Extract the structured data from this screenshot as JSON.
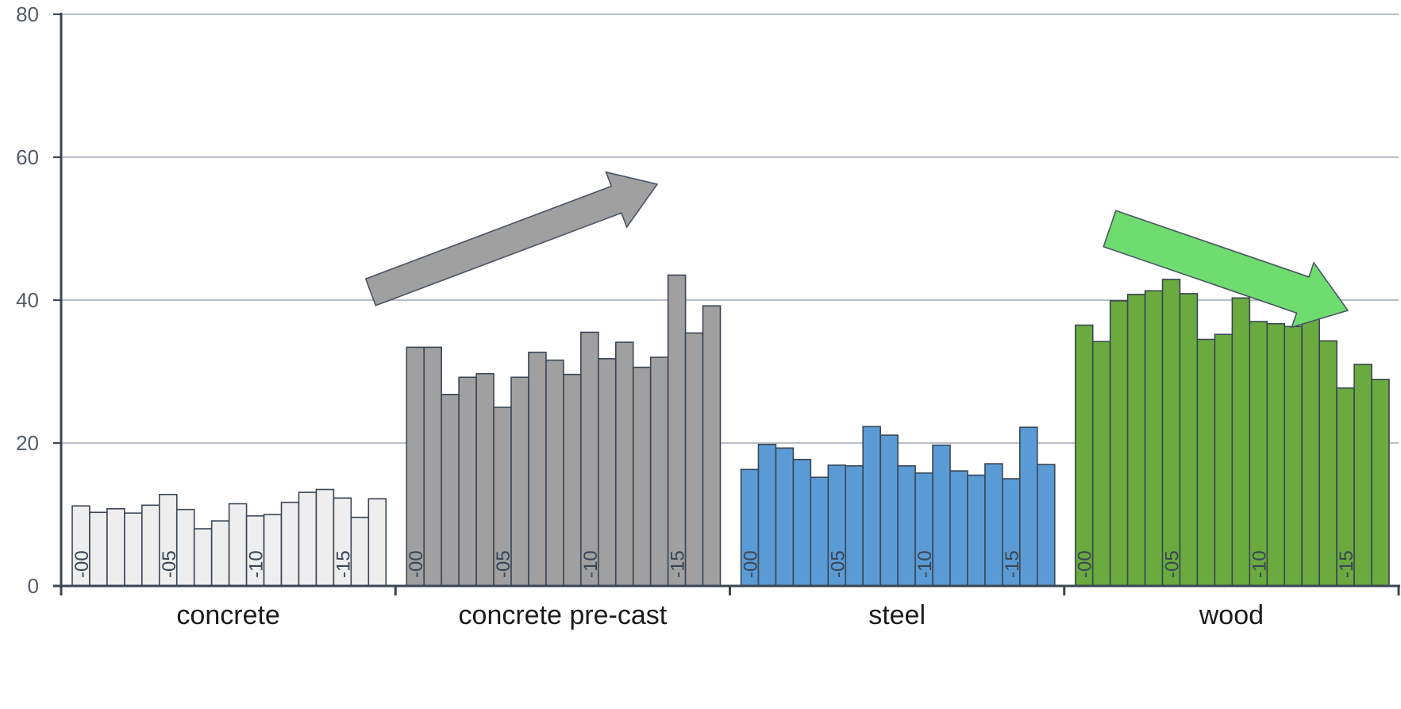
{
  "chart_data": {
    "type": "bar",
    "ylim": [
      0,
      80
    ],
    "yticks": [
      0,
      20,
      40,
      60,
      80
    ],
    "grid": true,
    "categories": [
      "concrete",
      "concrete pre-cast",
      "steel",
      "wood"
    ],
    "inbar_labels": [
      "-00",
      "-05",
      "-10",
      "-15"
    ],
    "inbar_positions": [
      0,
      5,
      10,
      15
    ],
    "groups": [
      {
        "name": "concrete",
        "color": "#eeeeee",
        "values": [
          11.2,
          10.3,
          10.8,
          10.2,
          11.3,
          12.8,
          10.7,
          8.0,
          9.1,
          11.5,
          9.8,
          10.0,
          11.7,
          13.1,
          13.5,
          12.3,
          9.6,
          12.2
        ]
      },
      {
        "name": "concrete pre-cast",
        "color": "#a0a0a0",
        "values": [
          33.4,
          33.4,
          26.8,
          29.2,
          29.7,
          25.0,
          29.2,
          32.7,
          31.6,
          29.6,
          35.5,
          31.8,
          34.1,
          30.6,
          32.0,
          43.5,
          35.4,
          39.2
        ]
      },
      {
        "name": "steel",
        "color": "#5b9bd5",
        "values": [
          16.3,
          19.8,
          19.3,
          17.7,
          15.2,
          16.9,
          16.8,
          22.3,
          21.1,
          16.8,
          15.8,
          19.7,
          16.1,
          15.5,
          17.1,
          15.0,
          22.2,
          17.0
        ]
      },
      {
        "name": "wood",
        "color": "#6aaa3f",
        "values": [
          36.5,
          34.2,
          39.9,
          40.8,
          41.3,
          42.9,
          40.9,
          34.5,
          35.2,
          40.3,
          37.0,
          36.7,
          36.3,
          38.9,
          34.3,
          27.7,
          31.0,
          28.9
        ]
      }
    ],
    "trend_arrows": [
      {
        "group": "concrete pre-cast",
        "direction": "up",
        "color": "#a0a0a0"
      },
      {
        "group": "wood",
        "direction": "down",
        "color": "#6fdc6f"
      }
    ]
  }
}
